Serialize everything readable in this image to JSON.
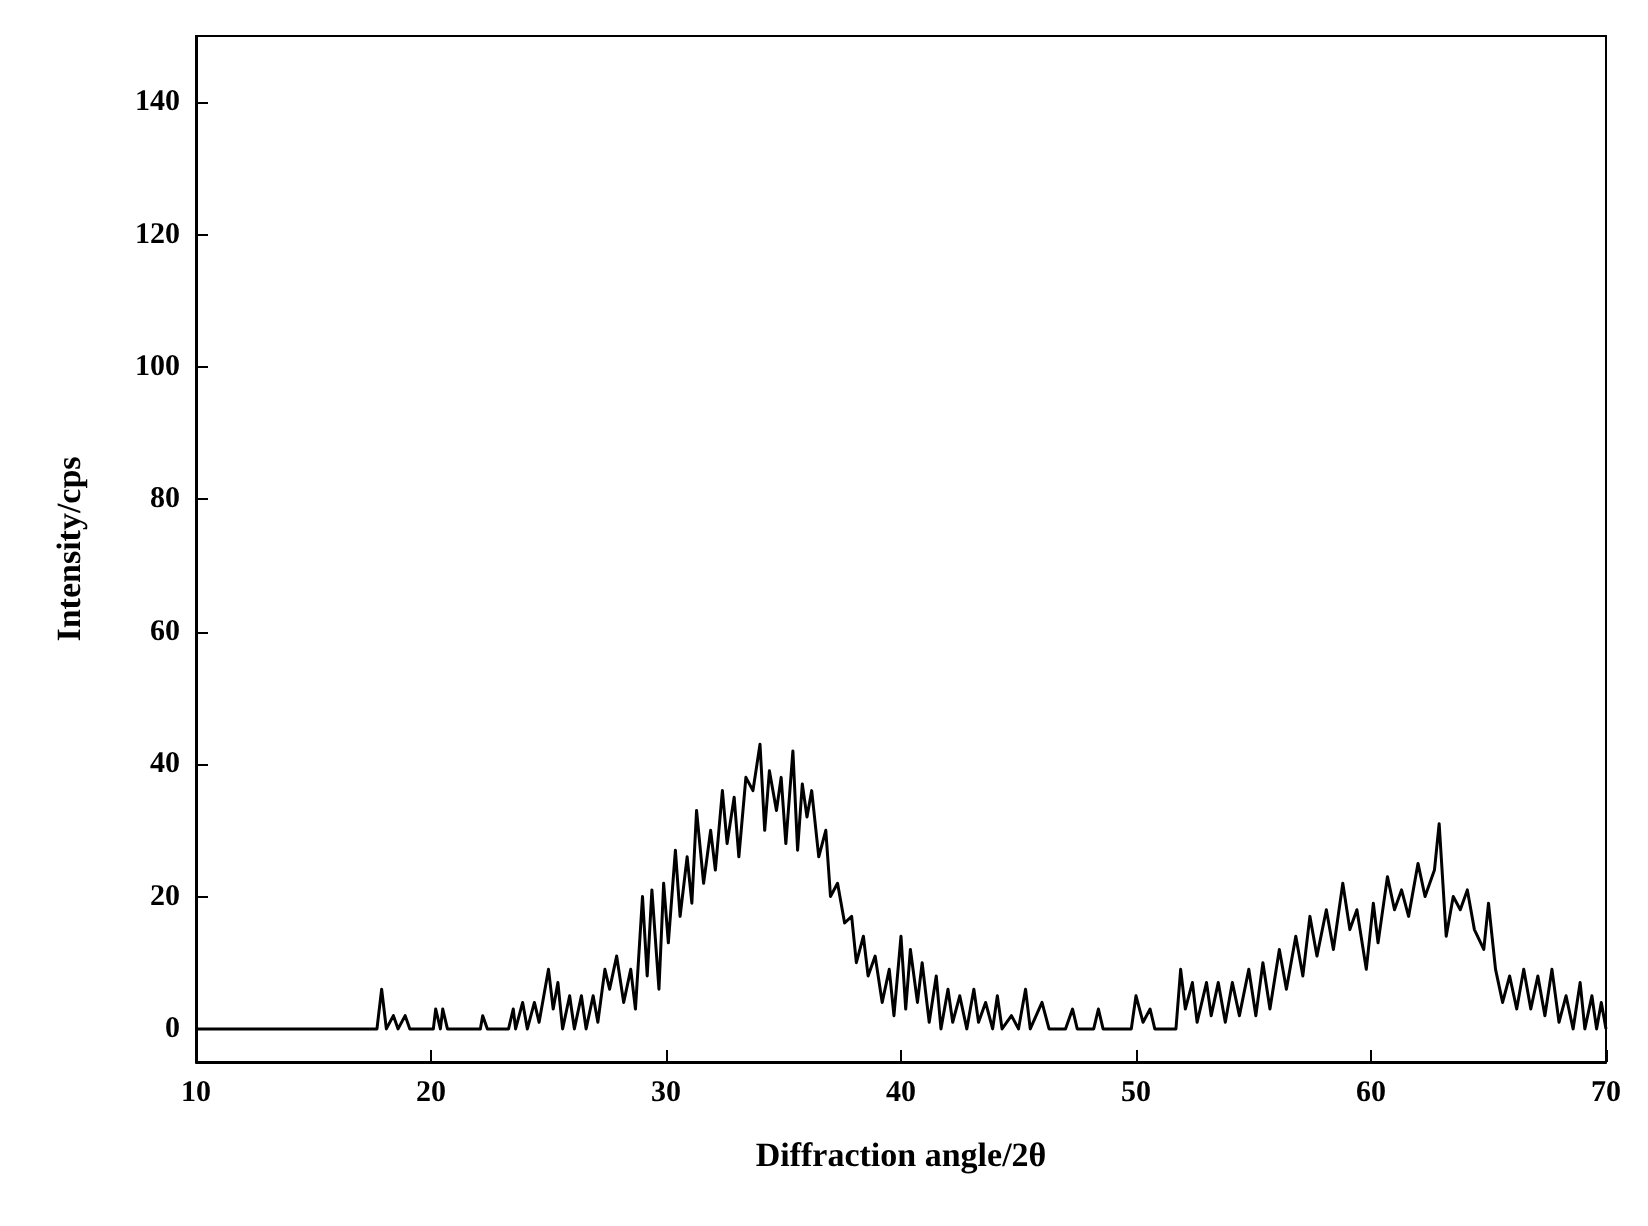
{
  "chart_data": {
    "type": "line",
    "xlabel": "Diffraction angle/2θ",
    "ylabel": "Intensity/cps",
    "xlim": [
      10,
      70
    ],
    "ylim": [
      -5,
      150
    ],
    "xticks": [
      10,
      20,
      30,
      40,
      50,
      60,
      70
    ],
    "yticks": [
      0,
      20,
      40,
      60,
      80,
      100,
      120,
      140
    ],
    "grid": false,
    "marker": "none",
    "line_style": "solid",
    "series": [
      {
        "color": "#000000",
        "x": [
          10,
          17.7,
          17.9,
          18.1,
          18.4,
          18.6,
          18.9,
          19.1,
          20.1,
          20.2,
          20.4,
          20.5,
          20.7,
          22.1,
          22.2,
          22.4,
          23.3,
          23.5,
          23.6,
          23.9,
          24.1,
          24.4,
          24.6,
          25.0,
          25.2,
          25.4,
          25.6,
          25.9,
          26.1,
          26.4,
          26.6,
          26.9,
          27.1,
          27.4,
          27.6,
          27.9,
          28.2,
          28.5,
          28.7,
          29.0,
          29.2,
          29.4,
          29.7,
          29.9,
          30.1,
          30.4,
          30.6,
          30.9,
          31.1,
          31.3,
          31.6,
          31.9,
          32.1,
          32.4,
          32.6,
          32.9,
          33.1,
          33.4,
          33.7,
          34.0,
          34.2,
          34.4,
          34.7,
          34.9,
          35.1,
          35.4,
          35.6,
          35.8,
          36.0,
          36.2,
          36.5,
          36.8,
          37.0,
          37.3,
          37.6,
          37.9,
          38.1,
          38.4,
          38.6,
          38.9,
          39.2,
          39.5,
          39.7,
          40.0,
          40.2,
          40.4,
          40.7,
          40.9,
          41.2,
          41.5,
          41.7,
          42.0,
          42.2,
          42.5,
          42.8,
          43.1,
          43.3,
          43.6,
          43.9,
          44.1,
          44.3,
          44.7,
          45.0,
          45.3,
          45.5,
          46.0,
          46.3,
          47.0,
          47.3,
          47.5,
          48.2,
          48.4,
          48.6,
          49.8,
          50.0,
          50.3,
          50.6,
          50.8,
          51.7,
          51.9,
          52.1,
          52.4,
          52.6,
          53.0,
          53.2,
          53.5,
          53.8,
          54.1,
          54.4,
          54.8,
          55.1,
          55.4,
          55.7,
          56.1,
          56.4,
          56.8,
          57.1,
          57.4,
          57.7,
          58.1,
          58.4,
          58.8,
          59.1,
          59.4,
          59.8,
          60.1,
          60.3,
          60.7,
          61.0,
          61.3,
          61.6,
          62.0,
          62.3,
          62.7,
          62.9,
          63.2,
          63.5,
          63.8,
          64.1,
          64.4,
          64.8,
          65.0,
          65.3,
          65.6,
          65.9,
          66.2,
          66.5,
          66.8,
          67.1,
          67.4,
          67.7,
          68.0,
          68.3,
          68.6,
          68.9,
          69.1,
          69.4,
          69.6,
          69.8,
          70
        ],
        "values": [
          0,
          0,
          6,
          0,
          2,
          0,
          2,
          0,
          0,
          3,
          0,
          3,
          0,
          0,
          2,
          0,
          0,
          3,
          0,
          4,
          0,
          4,
          1,
          9,
          3,
          7,
          0,
          5,
          0,
          5,
          0,
          5,
          1,
          9,
          6,
          11,
          4,
          9,
          3,
          20,
          8,
          21,
          6,
          22,
          13,
          27,
          17,
          26,
          19,
          33,
          22,
          30,
          24,
          36,
          28,
          35,
          26,
          38,
          36,
          43,
          30,
          39,
          33,
          38,
          28,
          42,
          27,
          37,
          32,
          36,
          26,
          30,
          20,
          22,
          16,
          17,
          10,
          14,
          8,
          11,
          4,
          9,
          2,
          14,
          3,
          12,
          4,
          10,
          1,
          8,
          0,
          6,
          1,
          5,
          0,
          6,
          1,
          4,
          0,
          5,
          0,
          2,
          0,
          6,
          0,
          4,
          0,
          0,
          3,
          0,
          0,
          3,
          0,
          0,
          5,
          1,
          3,
          0,
          0,
          9,
          3,
          7,
          1,
          7,
          2,
          7,
          1,
          7,
          2,
          9,
          2,
          10,
          3,
          12,
          6,
          14,
          8,
          17,
          11,
          18,
          12,
          22,
          15,
          18,
          9,
          19,
          13,
          23,
          18,
          21,
          17,
          25,
          20,
          24,
          31,
          14,
          20,
          18,
          21,
          15,
          12,
          19,
          9,
          4,
          8,
          3,
          9,
          3,
          8,
          2,
          9,
          1,
          5,
          0,
          7,
          0,
          5,
          0,
          4,
          0
        ]
      }
    ]
  }
}
